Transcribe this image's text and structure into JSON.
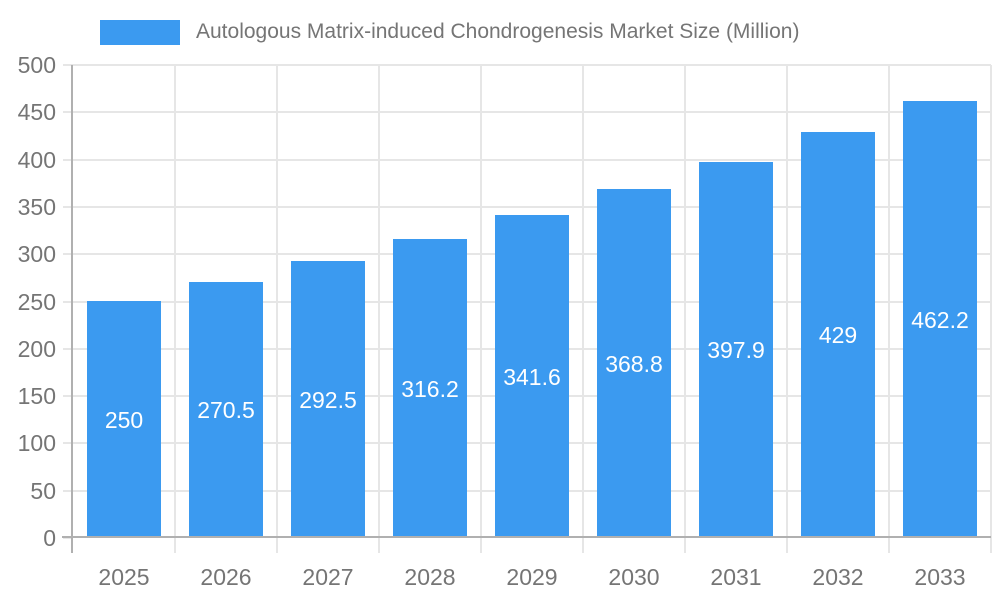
{
  "window": {
    "background": "#ffffff"
  },
  "legend": {
    "swatch_color": "#3b9af0",
    "label": "Autologous Matrix-induced Chondrogenesis Market Size (Million)"
  },
  "chart_data": {
    "type": "bar",
    "title": "",
    "categories": [
      "2025",
      "2026",
      "2027",
      "2028",
      "2029",
      "2030",
      "2031",
      "2032",
      "2033"
    ],
    "series": [
      {
        "name": "Autologous Matrix-induced Chondrogenesis Market Size (Million)",
        "values": [
          250,
          270.5,
          292.5,
          316.2,
          341.6,
          368.8,
          397.9,
          429,
          462.2
        ]
      }
    ],
    "value_labels": [
      "250",
      "270.5",
      "292.5",
      "316.2",
      "341.6",
      "368.8",
      "397.9",
      "429",
      "462.2"
    ],
    "xlabel": "",
    "ylabel": "",
    "ylim": [
      0,
      500
    ],
    "ytick_step": 50,
    "yticks": [
      "0",
      "50",
      "100",
      "150",
      "200",
      "250",
      "300",
      "350",
      "400",
      "450",
      "500"
    ],
    "grid": true,
    "legend_position": "top-left",
    "value_label_position": "inside-center",
    "colors": {
      "bar": "#3b9af0",
      "value_label": "#ffffff",
      "axis": "#b0b0b0",
      "grid": "#e6e6e6",
      "tick_text": "#757575"
    }
  }
}
